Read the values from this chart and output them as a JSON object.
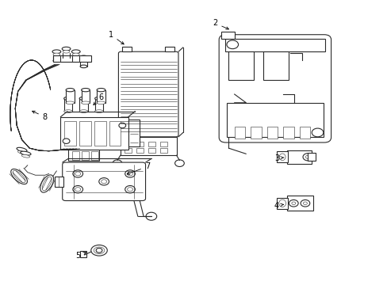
{
  "background_color": "#ffffff",
  "fig_width": 4.89,
  "fig_height": 3.6,
  "dpi": 100,
  "line_color": "#2a2a2a",
  "line_width": 0.8,
  "thin_lw": 0.4,
  "label_fontsize": 7
}
